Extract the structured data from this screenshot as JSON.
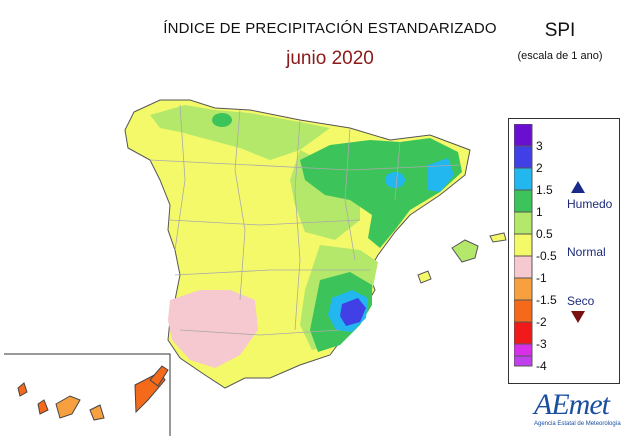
{
  "title": "ÍNDICE DE PRECIPITACIÓN ESTANDARIZADO",
  "subtitle": "junio 2020",
  "index_name": "SPI",
  "scale_note": "(escala de 1 ano)",
  "legend": {
    "classes": [
      {
        "label": "3",
        "color": "#6a0fd0"
      },
      {
        "label": "2",
        "color": "#4040e6"
      },
      {
        "label": "1.5",
        "color": "#22b7ee"
      },
      {
        "label": "1",
        "color": "#3cc45a"
      },
      {
        "label": "0.5",
        "color": "#b4e86a"
      },
      {
        "label": "-0.5",
        "color": "#f4f96a"
      },
      {
        "label": "-1",
        "color": "#f6c8cf"
      },
      {
        "label": "-1.5",
        "color": "#f7a040"
      },
      {
        "label": "-2",
        "color": "#f46a1a"
      },
      {
        "label": "-3",
        "color": "#f01a1a"
      },
      {
        "label": "-4",
        "color": "#d830e8"
      }
    ],
    "bottom_color": "#c040ee",
    "humid_label": "Humedo",
    "normal_label": "Normal",
    "dry_label": "Seco",
    "humid_arrow_color": "#1a2a8a",
    "dry_arrow_color": "#7a1010"
  },
  "logo": {
    "text": "AEmet",
    "subtext": "Agencia Estatal de Meteorología"
  }
}
